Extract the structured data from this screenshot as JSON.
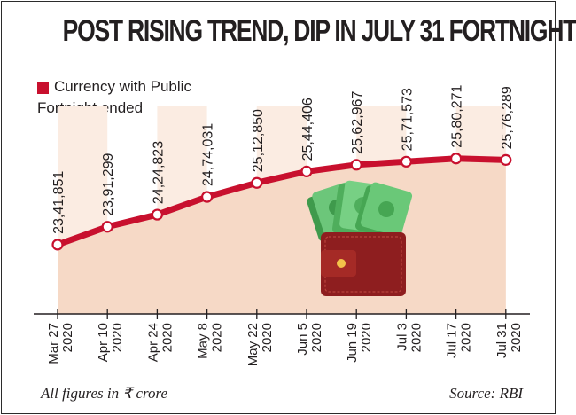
{
  "title": "POST RISING TREND, DIP IN JULY 31 FORTNIGHT",
  "legend": {
    "series_label": "Currency with Public",
    "subtitle": "Fortnight ended",
    "swatch_color": "#c8102e"
  },
  "footnote": "All figures in ₹ crore",
  "source": "Source: RBI",
  "colors": {
    "line": "#c8102e",
    "area": "#f6d9c6",
    "band": "#fbece2",
    "wallet": "#8e1e1f",
    "cash": "#5bbf6a"
  },
  "chart_data": {
    "type": "area",
    "title": "POST RISING TREND, DIP IN JULY 31 FORTNIGHT",
    "xlabel": "Fortnight ended",
    "ylabel": "Currency with Public (₹ crore)",
    "series": [
      {
        "name": "Currency with Public",
        "values": [
          2341851,
          2391299,
          2424823,
          2474031,
          2512850,
          2544406,
          2562967,
          2571573,
          2580271,
          2576289
        ]
      }
    ],
    "value_labels": [
      "23,41,851",
      "23,91,299",
      "24,24,823",
      "24,74,031",
      "25,12,850",
      "25,44,406",
      "25,62,967",
      "25,71,573",
      "25,80,271",
      "25,76,289"
    ],
    "categories": [
      {
        "date": "Mar 27",
        "year": "2020"
      },
      {
        "date": "Apr 10",
        "year": "2020"
      },
      {
        "date": "Apr 24",
        "year": "2020"
      },
      {
        "date": "May 8",
        "year": "2020"
      },
      {
        "date": "May 22",
        "year": "2020"
      },
      {
        "date": "Jun 5",
        "year": "2020"
      },
      {
        "date": "Jun 19",
        "year": "2020"
      },
      {
        "date": "Jul 3",
        "year": "2020"
      },
      {
        "date": "Jul 17",
        "year": "2020"
      },
      {
        "date": "Jul 31",
        "year": "2020"
      }
    ],
    "ylim": [
      2150000,
      2700000
    ],
    "grid": false,
    "legend_position": "top-left"
  }
}
